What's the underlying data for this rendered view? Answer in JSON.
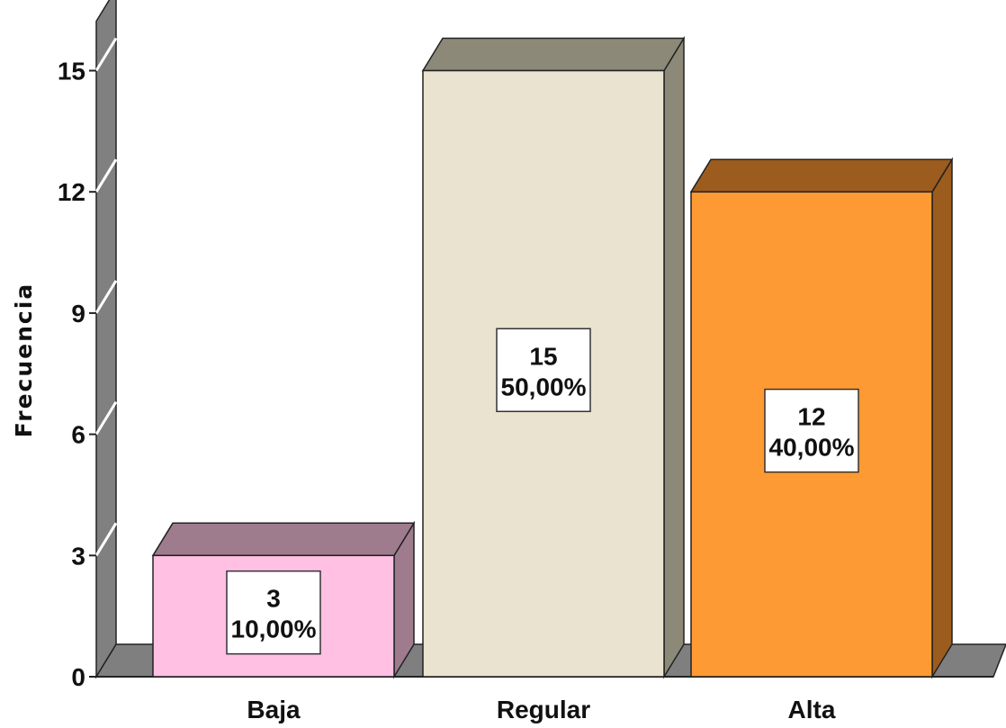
{
  "chart_data": {
    "type": "bar",
    "categories": [
      "Baja",
      "Regular",
      "Alta"
    ],
    "values": [
      3,
      15,
      12
    ],
    "percent_labels": [
      "10,00%",
      "50,00%",
      "40,00%"
    ],
    "ylabel": "Frecuencia",
    "xlabel": "",
    "ylim": [
      0,
      16
    ],
    "yticks": [
      0,
      3,
      6,
      9,
      12,
      15
    ],
    "style": "3d-bars",
    "colors": {
      "front": [
        "#FFC0E4",
        "#EAE3CF",
        "#FE9A33"
      ],
      "top": [
        "#9F7B8E",
        "#8C8978",
        "#9C5C1E"
      ],
      "side": [
        "#9F7B8E",
        "#8C8978",
        "#9C5C1E"
      ],
      "wall": "#808080",
      "floor": "#7F7F7F"
    },
    "grid": false,
    "legend": "none"
  }
}
